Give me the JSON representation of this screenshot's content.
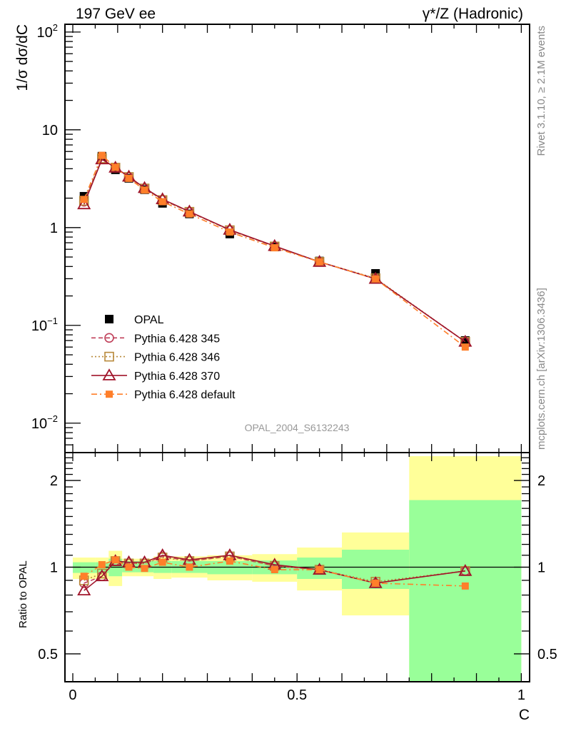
{
  "chart_data": {
    "type": "line",
    "title_left": "197 GeV ee",
    "title_right": "γ*/Z (Hadronic)",
    "analysis_label": "OPAL_2004_S6132243",
    "side_label_top": "Rivet 3.1.10, ≥ 2.1M events",
    "side_label_bottom": "mcplots.cern.ch [arXiv:1306.3436]",
    "xlabel": "C",
    "ylabel": "1/σ dσ/dC",
    "ratio_ylabel": "Ratio to OPAL",
    "xlim": [
      -0.0175,
      1.0185
    ],
    "ylim": [
      0.005,
      120
    ],
    "yscale": "log",
    "ratio_ylim": [
      0.4,
      2.5
    ],
    "ratio_yscale": "log",
    "x_ticks": [
      {
        "v": 0,
        "label": "0"
      },
      {
        "v": 0.5,
        "label": "0.5"
      },
      {
        "v": 1,
        "label": "1"
      }
    ],
    "y_ticks": [
      {
        "v": 0.01,
        "base": "10",
        "exp": "−2"
      },
      {
        "v": 0.1,
        "base": "10",
        "exp": "−1"
      },
      {
        "v": 1,
        "base": "1",
        "exp": ""
      },
      {
        "v": 10,
        "base": "10",
        "exp": ""
      },
      {
        "v": 100,
        "base": "10",
        "exp": "2"
      }
    ],
    "ratio_ticks": [
      {
        "v": 0.5,
        "label": "0.5"
      },
      {
        "v": 1,
        "label": "1"
      },
      {
        "v": 2,
        "label": "2"
      }
    ],
    "bin_edges": [
      0,
      0.05,
      0.08,
      0.11,
      0.14,
      0.18,
      0.22,
      0.3,
      0.4,
      0.5,
      0.6,
      0.75,
      1.0
    ],
    "x": [
      0.025,
      0.065,
      0.095,
      0.125,
      0.16,
      0.2,
      0.26,
      0.35,
      0.45,
      0.55,
      0.675,
      0.875
    ],
    "ratio_bands": {
      "stat_low": [
        0.955,
        0.955,
        0.93,
        0.96,
        0.96,
        0.955,
        0.955,
        0.945,
        0.945,
        0.91,
        0.84,
        0.3
      ],
      "stat_high": [
        1.04,
        1.04,
        1.07,
        1.05,
        1.05,
        1.05,
        1.05,
        1.05,
        1.055,
        1.08,
        1.15,
        1.71
      ],
      "total_low": [
        0.91,
        0.91,
        0.86,
        0.93,
        0.93,
        0.91,
        0.92,
        0.9,
        0.89,
        0.83,
        0.68,
        0.2
      ],
      "total_high": [
        1.08,
        1.08,
        1.14,
        1.07,
        1.07,
        1.09,
        1.09,
        1.1,
        1.11,
        1.17,
        1.32,
        2.43
      ]
    },
    "legend_position": "bottom-left",
    "series": [
      {
        "name": "OPAL",
        "marker": "filled-square",
        "line": "none",
        "color": "#000000",
        "values": [
          2.09,
          5.37,
          3.9,
          3.19,
          2.44,
          1.77,
          1.38,
          0.86,
          0.635,
          0.455,
          0.34,
          0.07
        ],
        "ratio": [
          1,
          1,
          1,
          1,
          1,
          1,
          1,
          1,
          1,
          1,
          1,
          1
        ]
      },
      {
        "name": "Pythia 6.428 345",
        "marker": "open-circle",
        "line": "dashed",
        "color": "#c0405a",
        "values": [
          1.84,
          4.99,
          4.1,
          3.29,
          2.51,
          1.93,
          1.45,
          0.94,
          0.641,
          0.446,
          0.299,
          0.068
        ],
        "ratio": [
          0.88,
          0.93,
          1.05,
          1.03,
          1.03,
          1.09,
          1.05,
          1.09,
          1.01,
          0.98,
          0.88,
          0.97
        ]
      },
      {
        "name": "Pythia 6.428 346",
        "marker": "open-square",
        "line": "dotted",
        "color": "#b8893a",
        "values": [
          1.88,
          5.1,
          4.1,
          3.29,
          2.51,
          1.91,
          1.45,
          0.94,
          0.641,
          0.446,
          0.303,
          0.068
        ],
        "ratio": [
          0.9,
          0.95,
          1.05,
          1.03,
          1.03,
          1.08,
          1.05,
          1.09,
          1.01,
          0.98,
          0.89,
          0.97
        ]
      },
      {
        "name": "Pythia 6.428 370",
        "marker": "open-triangle",
        "line": "solid",
        "color": "#a0142a",
        "values": [
          1.73,
          4.99,
          4.1,
          3.32,
          2.54,
          1.95,
          1.46,
          0.95,
          0.648,
          0.446,
          0.299,
          0.068
        ],
        "ratio": [
          0.83,
          0.93,
          1.05,
          1.04,
          1.04,
          1.1,
          1.06,
          1.1,
          1.02,
          0.98,
          0.88,
          0.97
        ]
      },
      {
        "name": "Pythia 6.428 default",
        "marker": "filled-square-small",
        "line": "dashdot",
        "color": "#ff7f2a",
        "values": [
          1.94,
          5.48,
          4.13,
          3.19,
          2.42,
          1.84,
          1.38,
          0.9,
          0.622,
          0.446,
          0.299,
          0.06
        ],
        "ratio": [
          0.93,
          1.02,
          1.06,
          1.0,
          0.99,
          1.04,
          1.0,
          1.05,
          0.98,
          0.98,
          0.88,
          0.86
        ]
      }
    ],
    "colors": {
      "stat_band": "#99ff99",
      "total_band": "#ffff99"
    }
  }
}
